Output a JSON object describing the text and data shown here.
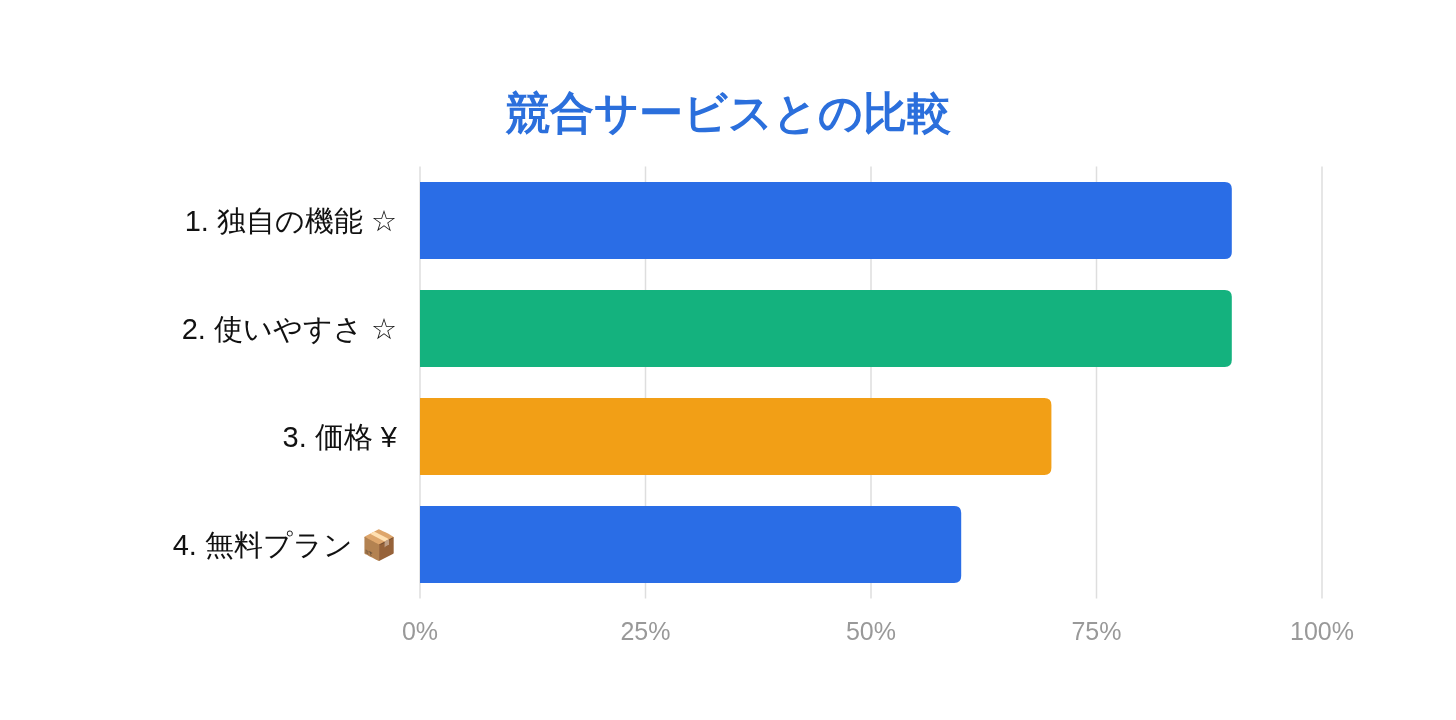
{
  "chart_data": {
    "type": "bar",
    "orientation": "horizontal",
    "title": "競合サービスとの比較",
    "categories": [
      "1. 独自の機能 ☆",
      "2. 使いやすさ ☆",
      "3. 価格 ¥",
      "4. 無料プラン 📦"
    ],
    "values": [
      90,
      90,
      70,
      60
    ],
    "colors": [
      "#2a6de6",
      "#14b27e",
      "#f29f16",
      "#2a6de6"
    ],
    "xlim": [
      0,
      100
    ],
    "xticks": [
      {
        "value": 0,
        "label": "0%"
      },
      {
        "value": 25,
        "label": "25%"
      },
      {
        "value": 50,
        "label": "50%"
      },
      {
        "value": 75,
        "label": "75%"
      },
      {
        "value": 100,
        "label": "100%"
      }
    ],
    "grid": "x"
  }
}
